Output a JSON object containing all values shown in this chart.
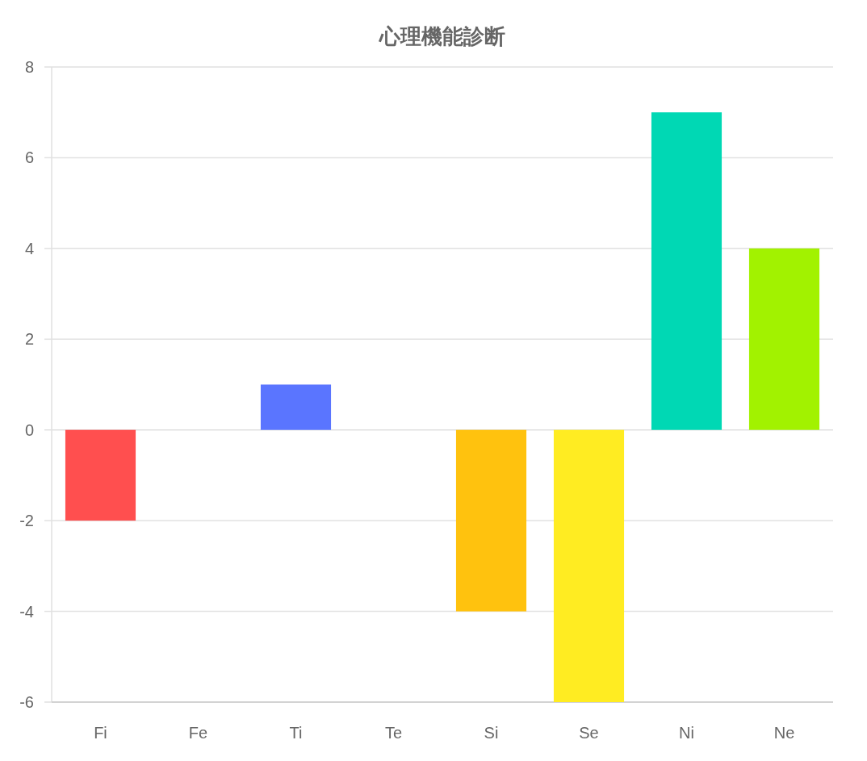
{
  "chart_data": {
    "type": "bar",
    "title": "心理機能診断",
    "categories": [
      "Fi",
      "Fe",
      "Ti",
      "Te",
      "Si",
      "Se",
      "Ni",
      "Ne"
    ],
    "values": [
      -2,
      0,
      1,
      0,
      -4,
      -6,
      7,
      4
    ],
    "colors": [
      "#ff4f4f",
      null,
      "#5a75ff",
      null,
      "#ffc20e",
      "#ffec22",
      "#00d8b4",
      "#a2f200"
    ],
    "ylim": [
      -6,
      8
    ],
    "yticks": [
      -6,
      -4,
      -2,
      0,
      2,
      4,
      6,
      8
    ],
    "grid": "y"
  }
}
